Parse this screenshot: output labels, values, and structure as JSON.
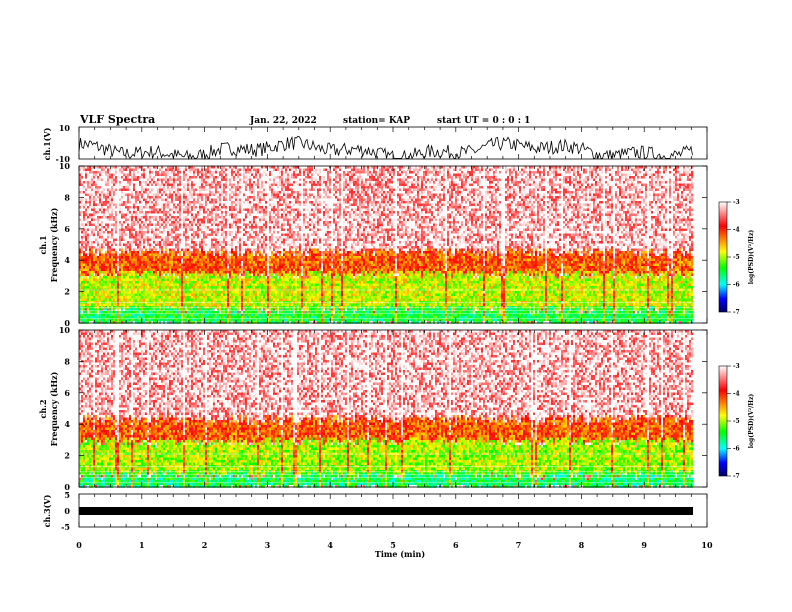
{
  "header": {
    "title": "VLF Spectra",
    "date": "Jan. 22, 2022",
    "station": "station= KAP",
    "start": "start  UT =   0 : 0  : 1"
  },
  "chart_data": [
    {
      "type": "line",
      "panel": "ch1-waveform",
      "ylabel": "ch.1(V)",
      "ylim": [
        -10,
        10
      ],
      "yticks": [
        "10",
        "-10"
      ],
      "xlim": [
        0,
        10
      ],
      "description": "dense noisy waveform oscillating mostly between 0 and -10 V"
    },
    {
      "type": "heatmap",
      "panel": "ch1-spectrogram",
      "ylabel": "ch.1\nFrequency (kHz)",
      "ylabel_lines": [
        "ch.1",
        "Frequency  (kHz)"
      ],
      "ylim": [
        0,
        10
      ],
      "yticks": [
        "0",
        "2",
        "4",
        "6",
        "8",
        "10"
      ],
      "xlim": [
        0,
        9.85
      ],
      "colorbar": {
        "label": "log(PSD)(V²/Hz)",
        "range": [
          -7,
          -3
        ],
        "ticks": [
          "-3",
          "-4",
          "-5",
          "-6",
          "-7"
        ],
        "colors": [
          "#ffffff",
          "#ff0000",
          "#ffff00",
          "#00ff00",
          "#00ffff",
          "#0000ff",
          "#000080"
        ]
      },
      "bands": [
        {
          "from_khz": 0,
          "to_khz": 1.0,
          "level": -5.5
        },
        {
          "from_khz": 1.0,
          "to_khz": 3.2,
          "level": -4.9
        },
        {
          "from_khz": 3.2,
          "to_khz": 4.6,
          "level": -4.2
        },
        {
          "from_khz": 4.6,
          "to_khz": 10,
          "level": -3.3
        }
      ]
    },
    {
      "type": "heatmap",
      "panel": "ch2-spectrogram",
      "ylabel_lines": [
        "ch.2",
        "Frequency  (kHz)"
      ],
      "ylim": [
        0,
        10
      ],
      "yticks": [
        "0",
        "2",
        "4",
        "6",
        "8",
        "10"
      ],
      "xlim": [
        0,
        9.85
      ],
      "colorbar": {
        "label": "log(PSD)(V²/Hz)",
        "range": [
          -7,
          -3
        ],
        "ticks": [
          "-3",
          "-4",
          "-5",
          "-6",
          "-7"
        ]
      },
      "bands": [
        {
          "from_khz": 0,
          "to_khz": 0.9,
          "level": -5.6
        },
        {
          "from_khz": 0.9,
          "to_khz": 3.0,
          "level": -5.0
        },
        {
          "from_khz": 3.0,
          "to_khz": 4.4,
          "level": -4.2
        },
        {
          "from_khz": 4.4,
          "to_khz": 10,
          "level": -3.3
        }
      ]
    },
    {
      "type": "line",
      "panel": "ch3-waveform",
      "ylabel": "ch.3(V)",
      "ylim": [
        -5,
        5
      ],
      "yticks": [
        "5",
        "0",
        "-5"
      ],
      "xlim": [
        0,
        10
      ],
      "xlabel": "Time  (min)",
      "xticks": [
        "0",
        "1",
        "2",
        "3",
        "4",
        "5",
        "6",
        "7",
        "8",
        "9",
        "10"
      ],
      "description": "flat thick band near -1 V"
    }
  ]
}
